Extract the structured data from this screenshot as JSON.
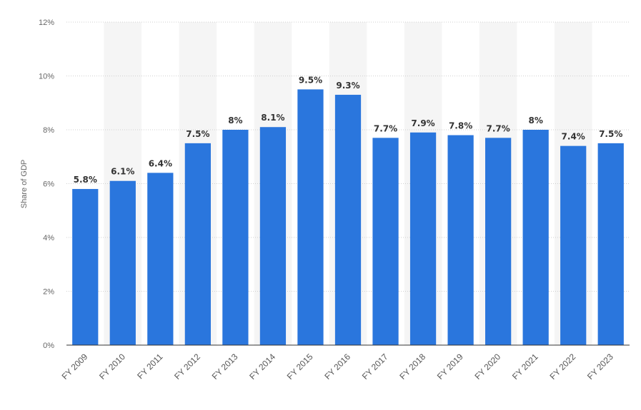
{
  "chart_data": {
    "type": "bar",
    "title": "",
    "xlabel": "",
    "ylabel": "Share of GDP",
    "categories": [
      "FY 2009",
      "FY 2010",
      "FY 2011",
      "FY 2012",
      "FY 2013",
      "FY 2014",
      "FY 2015",
      "FY 2016",
      "FY 2017",
      "FY 2018",
      "FY 2019",
      "FY 2020",
      "FY 2021",
      "FY 2022",
      "FY 2023"
    ],
    "values": [
      5.8,
      6.1,
      6.4,
      7.5,
      8.0,
      8.1,
      9.5,
      9.3,
      7.7,
      7.9,
      7.8,
      7.7,
      8.0,
      7.4,
      7.5
    ],
    "data_labels": [
      "5.8%",
      "6.1%",
      "6.4%",
      "7.5%",
      "8%",
      "8.1%",
      "9.5%",
      "9.3%",
      "7.7%",
      "7.9%",
      "7.8%",
      "7.7%",
      "8%",
      "7.4%",
      "7.5%"
    ],
    "ylim": [
      0,
      12
    ],
    "yticks": [
      0,
      2,
      4,
      6,
      8,
      10,
      12
    ],
    "ytick_labels": [
      "0%",
      "2%",
      "4%",
      "6%",
      "8%",
      "10%",
      "12%"
    ],
    "grid": true,
    "legend": "none",
    "colors": {
      "bar": "#2a76dd",
      "alt_band": "#f5f5f5",
      "grid": "#cfcfcf",
      "axis": "#333333"
    }
  }
}
